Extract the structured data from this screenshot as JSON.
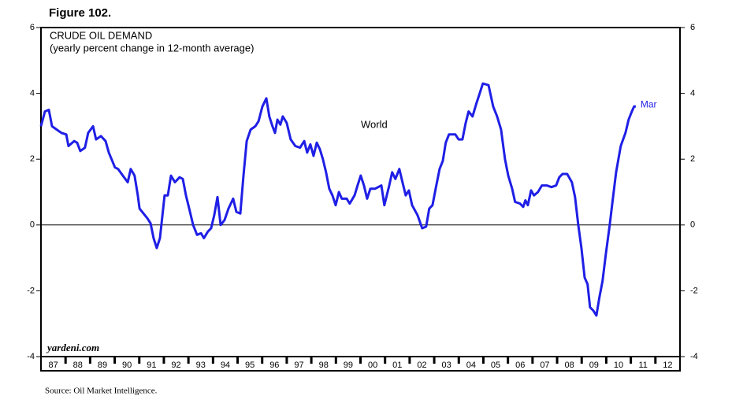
{
  "figure_label": "Figure 102.",
  "source": "Source: Oil Market Intelligence.",
  "watermark": "yardeni.com",
  "chart_data": {
    "type": "line",
    "title": "CRUDE OIL DEMAND",
    "subtitle": "(yearly percent change in 12-month average)",
    "annotations": [
      "Mar"
    ],
    "xlim": [
      1987,
      2013
    ],
    "ylim": [
      -4,
      6
    ],
    "yticks": [
      -4,
      -2,
      0,
      2,
      4,
      6
    ],
    "xticks": [
      {
        "value": 1987.5,
        "label": "87"
      },
      {
        "value": 1988.5,
        "label": "88"
      },
      {
        "value": 1989.5,
        "label": "89"
      },
      {
        "value": 1990.5,
        "label": "90"
      },
      {
        "value": 1991.5,
        "label": "91"
      },
      {
        "value": 1992.5,
        "label": "92"
      },
      {
        "value": 1993.5,
        "label": "93"
      },
      {
        "value": 1994.5,
        "label": "94"
      },
      {
        "value": 1995.5,
        "label": "95"
      },
      {
        "value": 1996.5,
        "label": "96"
      },
      {
        "value": 1997.5,
        "label": "97"
      },
      {
        "value": 1998.5,
        "label": "98"
      },
      {
        "value": 1999.5,
        "label": "99"
      },
      {
        "value": 2000.5,
        "label": "00"
      },
      {
        "value": 2001.5,
        "label": "01"
      },
      {
        "value": 2002.5,
        "label": "02"
      },
      {
        "value": 2003.5,
        "label": "03"
      },
      {
        "value": 2004.5,
        "label": "04"
      },
      {
        "value": 2005.5,
        "label": "05"
      },
      {
        "value": 2006.5,
        "label": "06"
      },
      {
        "value": 2007.5,
        "label": "07"
      },
      {
        "value": 2008.5,
        "label": "08"
      },
      {
        "value": 2009.5,
        "label": "09"
      },
      {
        "value": 2010.5,
        "label": "10"
      },
      {
        "value": 2011.5,
        "label": "11"
      },
      {
        "value": 2012.5,
        "label": "12"
      }
    ],
    "x": [
      1987.0,
      1987.16,
      1987.32,
      1987.45,
      1987.64,
      1987.83,
      1988.03,
      1988.12,
      1988.35,
      1988.47,
      1988.6,
      1988.79,
      1988.92,
      1989.12,
      1989.24,
      1989.44,
      1989.63,
      1989.76,
      1990.01,
      1990.14,
      1990.33,
      1990.53,
      1990.65,
      1990.81,
      1990.94,
      1991.01,
      1991.17,
      1991.33,
      1991.46,
      1991.58,
      1991.71,
      1991.84,
      1992.03,
      1992.16,
      1992.29,
      1992.45,
      1992.64,
      1992.77,
      1992.9,
      1993.03,
      1993.19,
      1993.35,
      1993.51,
      1993.63,
      1993.79,
      1993.92,
      1994.05,
      1994.18,
      1994.31,
      1994.47,
      1994.63,
      1994.82,
      1994.95,
      1995.11,
      1995.24,
      1995.37,
      1995.53,
      1995.72,
      1995.85,
      1996.01,
      1996.17,
      1996.29,
      1996.42,
      1996.52,
      1996.62,
      1996.74,
      1996.84,
      1997.0,
      1997.16,
      1997.35,
      1997.54,
      1997.71,
      1997.83,
      1997.96,
      1998.09,
      1998.22,
      1998.35,
      1998.47,
      1998.6,
      1998.73,
      1998.86,
      1998.99,
      1999.12,
      1999.24,
      1999.44,
      1999.56,
      1999.76,
      1999.88,
      2000.01,
      2000.14,
      2000.27,
      2000.4,
      2000.59,
      2000.85,
      2000.97,
      2001.17,
      2001.29,
      2001.42,
      2001.58,
      2001.71,
      2001.84,
      2001.97,
      2002.1,
      2002.32,
      2002.51,
      2002.67,
      2002.8,
      2002.93,
      2003.06,
      2003.22,
      2003.35,
      2003.47,
      2003.6,
      2003.86,
      2003.99,
      2004.15,
      2004.28,
      2004.4,
      2004.56,
      2004.72,
      2004.85,
      2004.98,
      2005.21,
      2005.4,
      2005.56,
      2005.72,
      2005.88,
      2006.01,
      2006.17,
      2006.29,
      2006.49,
      2006.62,
      2006.71,
      2006.81,
      2006.94,
      2007.06,
      2007.22,
      2007.38,
      2007.58,
      2007.77,
      2007.96,
      2008.09,
      2008.22,
      2008.41,
      2008.6,
      2008.73,
      2008.86,
      2008.99,
      2009.12,
      2009.24,
      2009.34,
      2009.47,
      2009.6,
      2009.72,
      2009.85,
      2009.98,
      2010.14,
      2010.27,
      2010.4,
      2010.59,
      2010.78,
      2010.91,
      2011.04,
      2011.13,
      2011.2
    ],
    "series": [
      {
        "name": "World",
        "color": "#1f1fe6",
        "values": [
          3.0,
          3.45,
          3.5,
          3.0,
          2.9,
          2.8,
          2.75,
          2.4,
          2.55,
          2.5,
          2.25,
          2.35,
          2.8,
          3.0,
          2.6,
          2.7,
          2.55,
          2.2,
          1.75,
          1.7,
          1.5,
          1.3,
          1.7,
          1.5,
          0.9,
          0.5,
          0.35,
          0.2,
          0.05,
          -0.4,
          -0.7,
          -0.4,
          0.9,
          0.9,
          1.5,
          1.3,
          1.45,
          1.4,
          0.9,
          0.5,
          0.0,
          -0.3,
          -0.25,
          -0.4,
          -0.2,
          -0.1,
          0.3,
          0.85,
          0.0,
          0.15,
          0.5,
          0.8,
          0.4,
          0.35,
          1.5,
          2.55,
          2.9,
          3.0,
          3.15,
          3.6,
          3.85,
          3.3,
          3.0,
          2.8,
          3.2,
          3.05,
          3.3,
          3.1,
          2.6,
          2.4,
          2.35,
          2.55,
          2.2,
          2.45,
          2.1,
          2.5,
          2.3,
          2.0,
          1.6,
          1.1,
          0.9,
          0.6,
          1.0,
          0.8,
          0.8,
          0.65,
          0.9,
          1.2,
          1.5,
          1.2,
          0.8,
          1.1,
          1.1,
          1.2,
          0.6,
          1.2,
          1.6,
          1.4,
          1.7,
          1.3,
          0.9,
          1.05,
          0.6,
          0.3,
          -0.1,
          -0.05,
          0.5,
          0.6,
          1.1,
          1.7,
          1.95,
          2.5,
          2.75,
          2.75,
          2.6,
          2.6,
          3.1,
          3.45,
          3.3,
          3.7,
          4.0,
          4.3,
          4.25,
          3.6,
          3.3,
          2.9,
          2.0,
          1.5,
          1.1,
          0.7,
          0.65,
          0.55,
          0.75,
          0.6,
          1.05,
          0.9,
          1.0,
          1.2,
          1.2,
          1.15,
          1.2,
          1.45,
          1.55,
          1.55,
          1.3,
          0.85,
          0.0,
          -0.7,
          -1.6,
          -1.8,
          -2.5,
          -2.6,
          -2.75,
          -2.2,
          -1.7,
          -0.9,
          0.0,
          0.8,
          1.6,
          2.4,
          2.8,
          3.2,
          3.45,
          3.6,
          3.6
        ]
      }
    ]
  }
}
